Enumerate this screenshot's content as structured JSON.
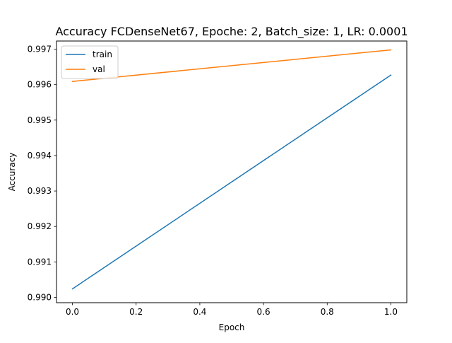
{
  "chart_data": {
    "type": "line",
    "title": "Accuracy FCDenseNet67, Epoche: 2, Batch_size: 1, LR: 0.0001",
    "xlabel": "Epoch",
    "ylabel": "Accuracy",
    "xlim": [
      -0.05,
      1.05
    ],
    "ylim": [
      0.98985,
      0.99723
    ],
    "xticks": [
      0.0,
      0.2,
      0.4,
      0.6,
      0.8,
      1.0
    ],
    "xtick_labels": [
      "0.0",
      "0.2",
      "0.4",
      "0.6",
      "0.8",
      "1.0"
    ],
    "yticks": [
      0.99,
      0.991,
      0.992,
      0.993,
      0.994,
      0.995,
      0.996,
      0.997
    ],
    "ytick_labels": [
      "0.990",
      "0.991",
      "0.992",
      "0.993",
      "0.994",
      "0.995",
      "0.996",
      "0.997"
    ],
    "grid": false,
    "legend_position": "upper left",
    "series": [
      {
        "name": "train",
        "color": "#1f77b4",
        "x": [
          0,
          1
        ],
        "y": [
          0.99024,
          0.99627
        ]
      },
      {
        "name": "val",
        "color": "#ff7f0e",
        "x": [
          0,
          1
        ],
        "y": [
          0.99609,
          0.99698
        ]
      }
    ]
  }
}
